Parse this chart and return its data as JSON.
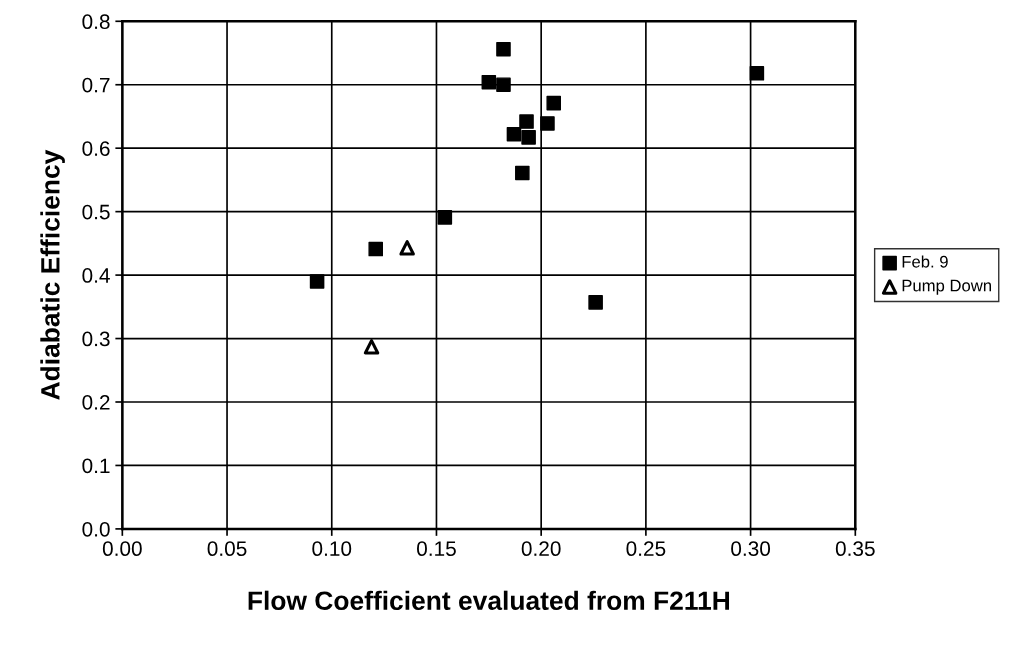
{
  "chart_data": {
    "type": "scatter",
    "xlabel": "Flow Coefficient evaluated from F211H",
    "ylabel": "Adiabatic Efficiency",
    "xlim": [
      0,
      0.35
    ],
    "ylim": [
      0,
      0.8
    ],
    "xticks": [
      {
        "value": 0,
        "label": "0.00"
      },
      {
        "value": 0.05,
        "label": "0.05"
      },
      {
        "value": 0.1,
        "label": "0.10"
      },
      {
        "value": 0.15,
        "label": "0.15"
      },
      {
        "value": 0.2,
        "label": "0.20"
      },
      {
        "value": 0.25,
        "label": "0.25"
      },
      {
        "value": 0.3,
        "label": "0.30"
      },
      {
        "value": 0.35,
        "label": "0.35"
      }
    ],
    "yticks": [
      {
        "value": 0,
        "label": "0.0"
      },
      {
        "value": 0.1,
        "label": "0.1"
      },
      {
        "value": 0.2,
        "label": "0.2"
      },
      {
        "value": 0.3,
        "label": "0.3"
      },
      {
        "value": 0.4,
        "label": "0.4"
      },
      {
        "value": 0.5,
        "label": "0.5"
      },
      {
        "value": 0.6,
        "label": "0.6"
      },
      {
        "value": 0.7,
        "label": "0.7"
      },
      {
        "value": 0.8,
        "label": "0.8"
      }
    ],
    "grid": true,
    "legend": "right",
    "series": [
      {
        "name": "Feb. 9",
        "color": "#000000",
        "marker": "square",
        "x": [
          0.093,
          0.121,
          0.154,
          0.182,
          0.175,
          0.182,
          0.206,
          0.193,
          0.203,
          0.187,
          0.194,
          0.191,
          0.226,
          0.303
        ],
        "values": [
          0.39,
          0.441,
          0.491,
          0.756,
          0.704,
          0.7,
          0.671,
          0.642,
          0.639,
          0.622,
          0.617,
          0.561,
          0.357,
          0.718
        ]
      },
      {
        "name": "Pump Down",
        "color": "#000000",
        "marker": "triangle",
        "x": [
          0.136,
          0.119
        ],
        "values": [
          0.443,
          0.287
        ]
      }
    ]
  }
}
